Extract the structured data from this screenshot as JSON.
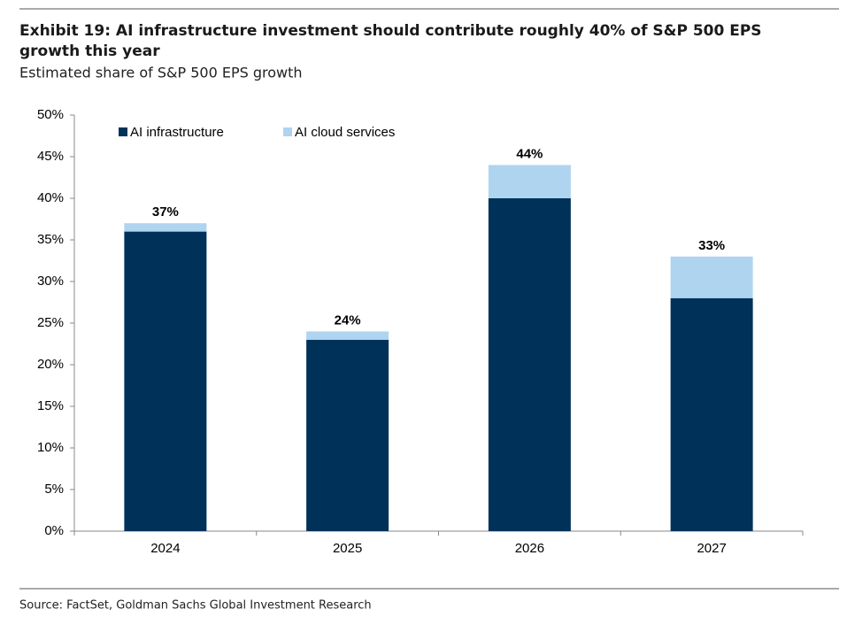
{
  "chart_data": {
    "type": "stacked-bar",
    "title": "Exhibit 19: AI infrastructure investment should contribute roughly 40% of S&P 500 EPS growth this year",
    "subtitle": "Estimated share of S&P 500 EPS growth",
    "source": "Source: FactSet, Goldman Sachs Global Investment Research",
    "categories": [
      "2024",
      "2025",
      "2026",
      "2027"
    ],
    "series": [
      {
        "name": "AI infrastructure",
        "color": "#003259",
        "values": [
          36,
          23,
          40,
          28
        ]
      },
      {
        "name": "AI cloud services",
        "color": "#aed4f0",
        "values": [
          1,
          1,
          4,
          5
        ]
      }
    ],
    "totals": {
      "values": [
        37,
        24,
        44,
        33
      ],
      "value_labels": [
        "37%",
        "24%",
        "44%",
        "33%"
      ]
    },
    "ylim": [
      0,
      50
    ],
    "yticks": [
      {
        "value": 0,
        "label": "0%"
      },
      {
        "value": 5,
        "label": "5%"
      },
      {
        "value": 10,
        "label": "10%"
      },
      {
        "value": 15,
        "label": "15%"
      },
      {
        "value": 20,
        "label": "20%"
      },
      {
        "value": 25,
        "label": "25%"
      },
      {
        "value": 30,
        "label": "30%"
      },
      {
        "value": 35,
        "label": "35%"
      },
      {
        "value": 40,
        "label": "40%"
      },
      {
        "value": 45,
        "label": "45%"
      },
      {
        "value": 50,
        "label": "50%"
      }
    ],
    "legend": "top-left",
    "grid": false
  }
}
